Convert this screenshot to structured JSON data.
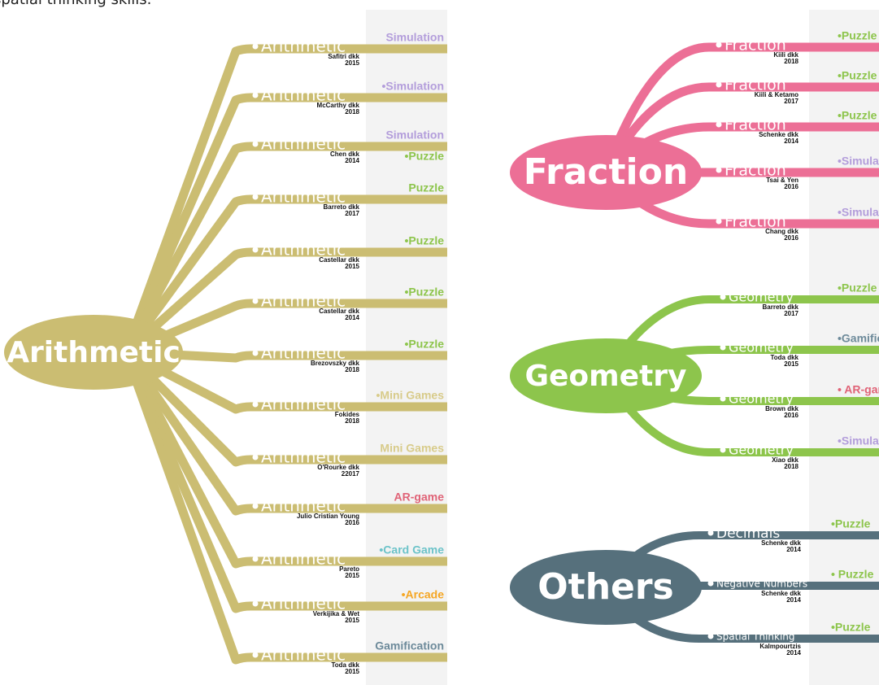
{
  "caption": "spatial thinking skills.",
  "trees": [
    {
      "root": "Arithmetic",
      "color": "#cbbd72",
      "branches": [
        {
          "label": "Arithmetic",
          "author": "Safitri dkk",
          "year": "2015",
          "games": [
            {
              "text": "Simulation",
              "color": "#b39ddb"
            }
          ]
        },
        {
          "label": "Arithmetic",
          "author": "McCarthy dkk",
          "year": "2018",
          "games": [
            {
              "text": "•Simulation",
              "color": "#b39ddb"
            }
          ]
        },
        {
          "label": "Arithmetic",
          "author": "Chen dkk",
          "year": "2014",
          "games": [
            {
              "text": "Simulation",
              "color": "#b39ddb"
            },
            {
              "text": "•Puzzle",
              "color": "#8dc54c"
            }
          ]
        },
        {
          "label": "Arithmetic",
          "author": "Barreto dkk",
          "year": "2017",
          "games": [
            {
              "text": "Puzzle",
              "color": "#8dc54c"
            }
          ]
        },
        {
          "label": "Arithmetic",
          "author": "Castellar dkk",
          "year": "2015",
          "games": [
            {
              "text": "•Puzzle",
              "color": "#8dc54c"
            }
          ]
        },
        {
          "label": "Arithmetic",
          "author": "Castellar dkk",
          "year": "2014",
          "games": [
            {
              "text": "•Puzzle",
              "color": "#8dc54c"
            }
          ]
        },
        {
          "label": "Arithmetic",
          "author": "Brezovszky dkk",
          "year": "2018",
          "games": [
            {
              "text": "•Puzzle",
              "color": "#8dc54c"
            }
          ]
        },
        {
          "label": "Arithmetic",
          "author": "Fokides",
          "year": "2018",
          "games": [
            {
              "text": "•Mini Games",
              "color": "#d8cb8a"
            }
          ]
        },
        {
          "label": "Arithmetic",
          "author": "O'Rourke dkk",
          "year": "22017",
          "games": [
            {
              "text": "Mini Games",
              "color": "#d8cb8a"
            }
          ]
        },
        {
          "label": "Arithmetic",
          "author": "Julio Cristian Young",
          "year": "2016",
          "games": [
            {
              "text": "AR-game",
              "color": "#e06377"
            }
          ]
        },
        {
          "label": "Arithmetic",
          "author": "Pareto",
          "year": "2015",
          "games": [
            {
              "text": "•Card Game",
              "color": "#6cc3c9"
            }
          ]
        },
        {
          "label": "Arithmetic",
          "author": "Verkijika & Wet",
          "year": "2015",
          "games": [
            {
              "text": "•Arcade",
              "color": "#f5a623"
            }
          ]
        },
        {
          "label": "Arithmetic",
          "author": "Toda dkk",
          "year": "2015",
          "games": [
            {
              "text": "Gamification",
              "color": "#6d8a9a"
            }
          ]
        }
      ]
    },
    {
      "root": "Fraction",
      "color": "#ec6f96",
      "branches": [
        {
          "label": "Fraction",
          "author": "Kiili dkk",
          "year": "2018",
          "games": [
            {
              "text": "•Puzzle",
              "color": "#8dc54c"
            }
          ]
        },
        {
          "label": "Fraction",
          "author": "Kiili & Ketamo",
          "year": "2017",
          "games": [
            {
              "text": "•Puzzle",
              "color": "#8dc54c"
            }
          ]
        },
        {
          "label": "Fraction",
          "author": "Schenke dkk",
          "year": "2014",
          "games": [
            {
              "text": "•Puzzle",
              "color": "#8dc54c"
            }
          ]
        },
        {
          "label": "Fraction",
          "author": "Tsai & Yen",
          "year": "2016",
          "games": [
            {
              "text": "•Simulation",
              "color": "#b39ddb"
            }
          ]
        },
        {
          "label": "Fraction",
          "author": "Chang dkk",
          "year": "2016",
          "games": [
            {
              "text": "•Simulation",
              "color": "#b39ddb"
            }
          ]
        }
      ]
    },
    {
      "root": "Geometry",
      "color": "#8dc54c",
      "branches": [
        {
          "label": "Geometry",
          "author": "Barreto dkk",
          "year": "2017",
          "games": [
            {
              "text": "•Puzzle",
              "color": "#8dc54c"
            }
          ]
        },
        {
          "label": "Geometry",
          "author": "Toda dkk",
          "year": "2015",
          "games": [
            {
              "text": "•Gamification",
              "color": "#6d8a9a"
            }
          ]
        },
        {
          "label": "Geometry",
          "author": "Brown dkk",
          "year": "2016",
          "games": [
            {
              "text": "• AR-game",
              "color": "#e06377"
            }
          ]
        },
        {
          "label": "Geometry",
          "author": "Xiao dkk",
          "year": "2018",
          "games": [
            {
              "text": "•Simulation",
              "color": "#b39ddb"
            }
          ]
        }
      ]
    },
    {
      "root": "Others",
      "color": "#56707c",
      "branches": [
        {
          "label": "Decimals",
          "author": "Schenke dkk",
          "year": "2014",
          "games": [
            {
              "text": "•Puzzle",
              "color": "#8dc54c"
            }
          ]
        },
        {
          "label": "Negative Numbers",
          "author": "Schenke dkk",
          "year": "2014",
          "games": [
            {
              "text": "• Puzzle",
              "color": "#8dc54c"
            }
          ]
        },
        {
          "label": "Spatial Thinking",
          "author": "Kalmpourtzis",
          "year": "2014",
          "games": [
            {
              "text": "•Puzzle",
              "color": "#8dc54c"
            }
          ]
        }
      ]
    }
  ]
}
